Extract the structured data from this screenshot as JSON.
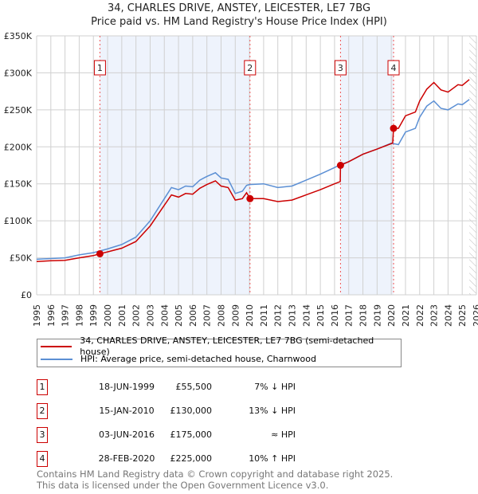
{
  "chart_data": {
    "type": "line",
    "title": "34, CHARLES DRIVE, ANSTEY, LEICESTER, LE7 7BG",
    "subtitle": "Price paid vs. HM Land Registry's House Price Index (HPI)",
    "xlim": [
      1995,
      2026
    ],
    "ylim": [
      0,
      350000
    ],
    "x_ticks": [
      "1995",
      "1996",
      "1997",
      "1998",
      "1999",
      "2000",
      "2001",
      "2002",
      "2003",
      "2004",
      "2005",
      "2006",
      "2007",
      "2008",
      "2009",
      "2010",
      "2011",
      "2012",
      "2013",
      "2014",
      "2015",
      "2016",
      "2017",
      "2018",
      "2019",
      "2020",
      "2021",
      "2022",
      "2023",
      "2024",
      "2025",
      "2026"
    ],
    "y_ticks": [
      {
        "v": 0,
        "label": "£0"
      },
      {
        "v": 50000,
        "label": "£50K"
      },
      {
        "v": 100000,
        "label": "£100K"
      },
      {
        "v": 150000,
        "label": "£150K"
      },
      {
        "v": 200000,
        "label": "£200K"
      },
      {
        "v": 250000,
        "label": "£250K"
      },
      {
        "v": 300000,
        "label": "£300K"
      },
      {
        "v": 350000,
        "label": "£350K"
      }
    ],
    "grid": true,
    "colors": {
      "property": "#cc0000",
      "hpi": "#5b8fd4",
      "shade": "#eef3fc"
    },
    "hpi": [
      [
        1995,
        48000
      ],
      [
        1996,
        49000
      ],
      [
        1997,
        50000
      ],
      [
        1998,
        54000
      ],
      [
        1999,
        57000
      ],
      [
        1999.5,
        59500
      ],
      [
        2000,
        62000
      ],
      [
        2001,
        68000
      ],
      [
        2002,
        78000
      ],
      [
        2003,
        100000
      ],
      [
        2003.5,
        115000
      ],
      [
        2004,
        130000
      ],
      [
        2004.5,
        145000
      ],
      [
        2005,
        142000
      ],
      [
        2005.5,
        147000
      ],
      [
        2006,
        146000
      ],
      [
        2006.5,
        155000
      ],
      [
        2007,
        160000
      ],
      [
        2007.6,
        165000
      ],
      [
        2008,
        158000
      ],
      [
        2008.5,
        156000
      ],
      [
        2009,
        137000
      ],
      [
        2009.5,
        140000
      ],
      [
        2009.8,
        148000
      ],
      [
        2010,
        149000
      ],
      [
        2011,
        150000
      ],
      [
        2012,
        145000
      ],
      [
        2013,
        147000
      ],
      [
        2014,
        155000
      ],
      [
        2015,
        163000
      ],
      [
        2016,
        172000
      ],
      [
        2016.4,
        176000
      ],
      [
        2017,
        180000
      ],
      [
        2018,
        190000
      ],
      [
        2019,
        197000
      ],
      [
        2020,
        205000
      ],
      [
        2020.5,
        203000
      ],
      [
        2021,
        220000
      ],
      [
        2021.7,
        225000
      ],
      [
        2022,
        240000
      ],
      [
        2022.5,
        255000
      ],
      [
        2023,
        262000
      ],
      [
        2023.5,
        252000
      ],
      [
        2024,
        250000
      ],
      [
        2024.7,
        258000
      ],
      [
        2025,
        257000
      ],
      [
        2025.5,
        264000
      ]
    ],
    "property": [
      [
        1995,
        45000
      ],
      [
        1996,
        46000
      ],
      [
        1997,
        46500
      ],
      [
        1998,
        50000
      ],
      [
        1999,
        53000
      ],
      [
        1999.46,
        55500
      ],
      [
        2000,
        58000
      ],
      [
        2001,
        63000
      ],
      [
        2002,
        72000
      ],
      [
        2003,
        93000
      ],
      [
        2003.5,
        107000
      ],
      [
        2004,
        121000
      ],
      [
        2004.5,
        135000
      ],
      [
        2005,
        132000
      ],
      [
        2005.5,
        137000
      ],
      [
        2006,
        136000
      ],
      [
        2006.5,
        144000
      ],
      [
        2007,
        149000
      ],
      [
        2007.6,
        154000
      ],
      [
        2008,
        147000
      ],
      [
        2008.5,
        145000
      ],
      [
        2009,
        128000
      ],
      [
        2009.5,
        130000
      ],
      [
        2009.8,
        138000
      ],
      [
        2010.04,
        130000
      ],
      [
        2011,
        130000
      ],
      [
        2012,
        126000
      ],
      [
        2013,
        128000
      ],
      [
        2014,
        135000
      ],
      [
        2015,
        142000
      ],
      [
        2016,
        150000
      ],
      [
        2016.4,
        153000
      ],
      [
        2016.42,
        175000
      ],
      [
        2017,
        180000
      ],
      [
        2018,
        190000
      ],
      [
        2019,
        197000
      ],
      [
        2020.1,
        205000
      ],
      [
        2020.16,
        225000
      ],
      [
        2020.5,
        225000
      ],
      [
        2021,
        242000
      ],
      [
        2021.7,
        247000
      ],
      [
        2022,
        262000
      ],
      [
        2022.5,
        278000
      ],
      [
        2023,
        287000
      ],
      [
        2023.5,
        277000
      ],
      [
        2024,
        274000
      ],
      [
        2024.7,
        284000
      ],
      [
        2025,
        283000
      ],
      [
        2025.5,
        291000
      ]
    ],
    "sales": [
      {
        "n": "1",
        "x": 1999.46,
        "y": 55500
      },
      {
        "n": "2",
        "x": 2010.04,
        "y": 130000
      },
      {
        "n": "3",
        "x": 2016.42,
        "y": 175000
      },
      {
        "n": "4",
        "x": 2020.16,
        "y": 225000
      }
    ],
    "shaded": [
      [
        1999.46,
        2010.04
      ],
      [
        2016.42,
        2020.16
      ]
    ],
    "hatched_from": 2025.5,
    "legend": {
      "placement": "below",
      "property": "34, CHARLES DRIVE, ANSTEY, LEICESTER, LE7 7BG (semi-detached house)",
      "hpi": "HPI: Average price, semi-detached house, Charnwood"
    }
  },
  "table": [
    {
      "n": "1",
      "date": "18-JUN-1999",
      "price": "£55,500",
      "hpi": "7% ↓ HPI"
    },
    {
      "n": "2",
      "date": "15-JAN-2010",
      "price": "£130,000",
      "hpi": "13% ↓ HPI"
    },
    {
      "n": "3",
      "date": "03-JUN-2016",
      "price": "£175,000",
      "hpi": "≈ HPI"
    },
    {
      "n": "4",
      "date": "28-FEB-2020",
      "price": "£225,000",
      "hpi": "10% ↑ HPI"
    }
  ],
  "footer": [
    "Contains HM Land Registry data © Crown copyright and database right 2025.",
    "This data is licensed under the Open Government Licence v3.0."
  ]
}
